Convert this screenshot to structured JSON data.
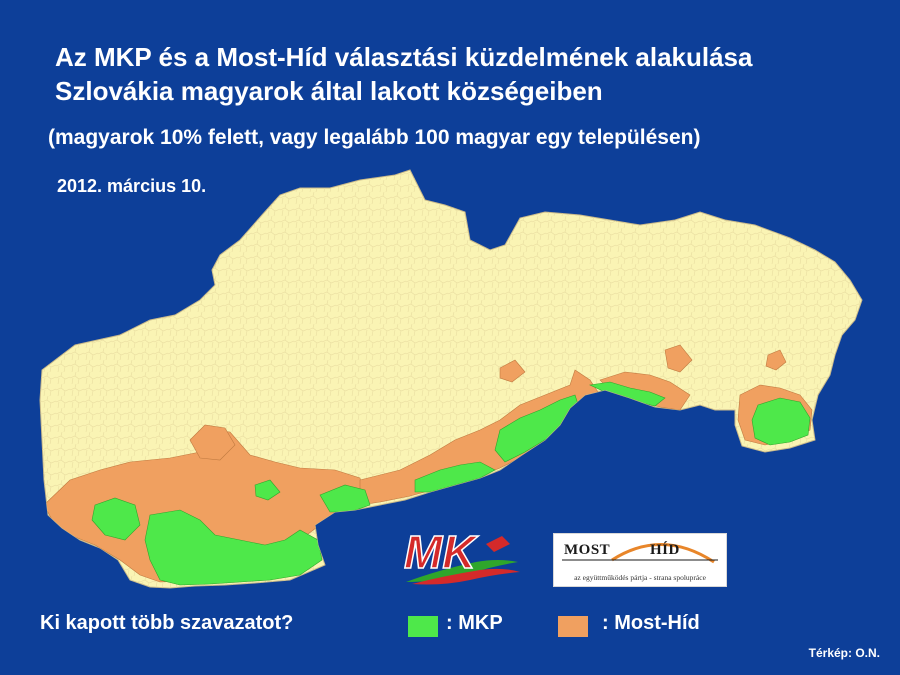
{
  "title": {
    "line1": "Az MKP és a Most-Híd választási küzdelmének alakulása",
    "line2": "Szlovákia magyarok által lakott községeiben"
  },
  "subtitle": "(magyarok 10% felett, vagy legalább 100 magyar egy településen)",
  "date": "2012. március 10.",
  "map": {
    "country": "Szlovákia",
    "colors": {
      "background": "#0d3f99",
      "country_fill": "#faf4b4",
      "mkp": "#4ee84a",
      "most_hid": "#f0a060",
      "border": "#c9b98a"
    }
  },
  "logos": {
    "mk_text": "MK",
    "most_hid_word1": "MOST",
    "most_hid_word2": "HÍD",
    "most_hid_tagline": "az együttműködés pártja - strana spolupráce"
  },
  "legend": {
    "question": "Ki kapott több szavazatot?",
    "items": [
      {
        "label": ": MKP",
        "color": "#4ee84a"
      },
      {
        "label": ": Most-Híd",
        "color": "#f0a060"
      }
    ]
  },
  "credit": "Térkép: O.N."
}
